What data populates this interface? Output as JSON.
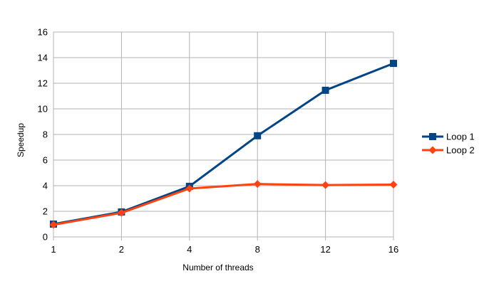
{
  "chart_data": {
    "type": "line",
    "title": "",
    "xlabel": "Number of threads",
    "ylabel": "Speedup",
    "categories": [
      "1",
      "2",
      "4",
      "8",
      "12",
      "16"
    ],
    "ylim": [
      0,
      16
    ],
    "yticks": [
      "0",
      "2",
      "4",
      "6",
      "8",
      "10",
      "12",
      "14",
      "16"
    ],
    "grid": true,
    "legend_position": "right",
    "series": [
      {
        "name": "Loop 1",
        "values": [
          1.0,
          1.95,
          3.95,
          7.9,
          11.45,
          13.55
        ],
        "color": "#004586",
        "marker": "square"
      },
      {
        "name": "Loop 2",
        "values": [
          0.95,
          1.88,
          3.78,
          4.13,
          4.05,
          4.08
        ],
        "color": "#ff420e",
        "marker": "diamond"
      }
    ]
  }
}
